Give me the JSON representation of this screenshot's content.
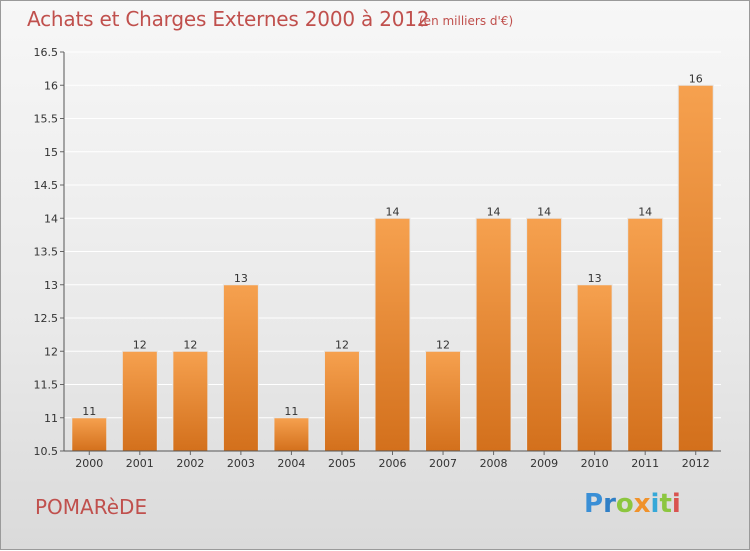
{
  "title": "Achats et Charges Externes 2000 à 2012",
  "subtitle": "(en milliers d'€)",
  "town": "POMARèDE",
  "brand": {
    "letters": [
      {
        "ch": "P",
        "color": "#3a8fd6"
      },
      {
        "ch": "r",
        "color": "#2f7fc6"
      },
      {
        "ch": "o",
        "color": "#8cc63f"
      },
      {
        "ch": "x",
        "color": "#f0922b"
      },
      {
        "ch": "i",
        "color": "#35a8d8"
      },
      {
        "ch": "t",
        "color": "#8cc63f"
      },
      {
        "ch": "i",
        "color": "#d9534f"
      }
    ]
  },
  "colors": {
    "title": "#c0504d",
    "bar_light": "#f6a14f",
    "bar_dark": "#d3701c",
    "grid": "#ffffff",
    "axis": "#444444"
  },
  "chart_data": {
    "type": "bar",
    "categories": [
      "2000",
      "2001",
      "2002",
      "2003",
      "2004",
      "2005",
      "2006",
      "2007",
      "2008",
      "2009",
      "2010",
      "2011",
      "2012"
    ],
    "values": [
      11,
      12,
      12,
      13,
      11,
      12,
      14,
      12,
      14,
      14,
      13,
      14,
      16
    ],
    "data_labels": [
      "11",
      "12",
      "12",
      "13",
      "11",
      "12",
      "14",
      "12",
      "14",
      "14",
      "13",
      "14",
      "16"
    ],
    "ylim": [
      10.5,
      16.5
    ],
    "yticks": [
      10.5,
      11,
      11.5,
      12,
      12.5,
      13,
      13.5,
      14,
      14.5,
      15,
      15.5,
      16,
      16.5
    ],
    "ytick_labels": [
      "10.5",
      "11",
      "11.5",
      "12",
      "12.5",
      "13",
      "13.5",
      "14",
      "14.5",
      "15",
      "15.5",
      "16",
      "16.5"
    ],
    "grid": "horizontal, white",
    "xlabel": "",
    "ylabel": ""
  }
}
